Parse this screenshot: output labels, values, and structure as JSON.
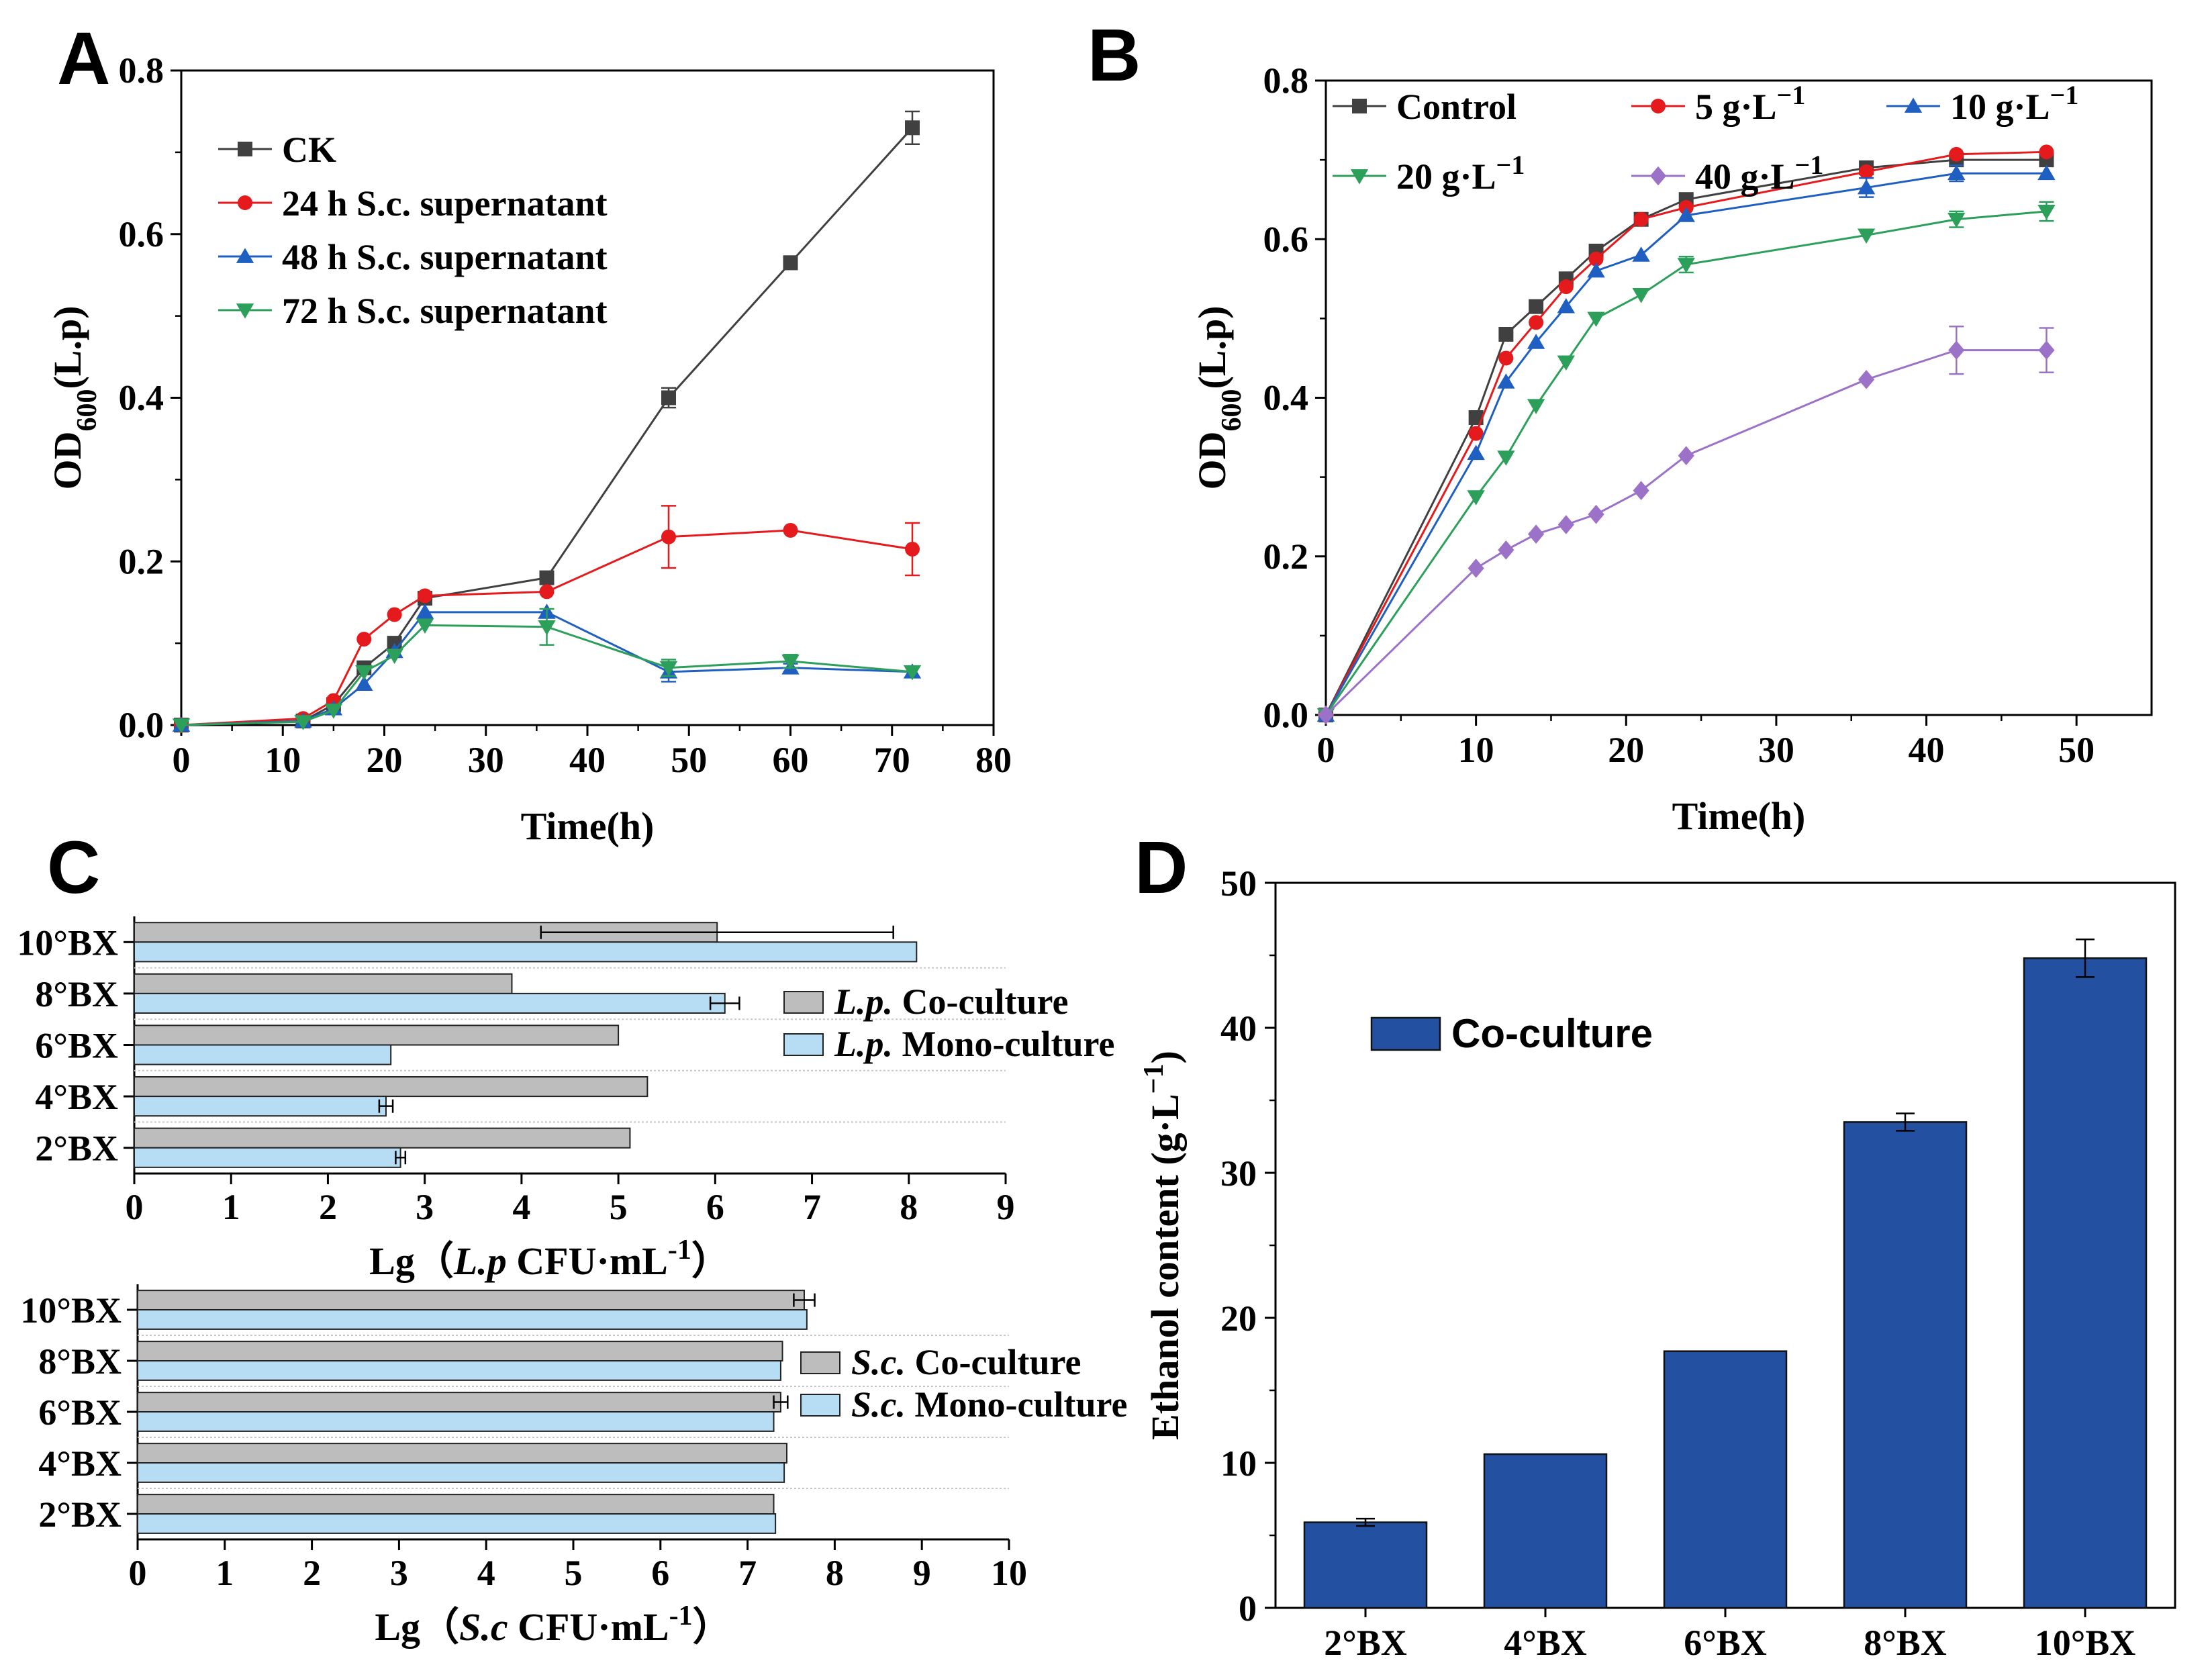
{
  "chart_data": [
    {
      "panel": "A",
      "type": "line",
      "xlabel": "Time(h)",
      "ylabel": "OD600(L.p)",
      "ylabel_main": "OD",
      "ylabel_sub": "600",
      "ylabel_tail": "(L.p)",
      "xlim": [
        0,
        80
      ],
      "ylim": [
        0,
        0.8
      ],
      "xticks": [
        0,
        10,
        20,
        30,
        40,
        50,
        60,
        70,
        80
      ],
      "yticks": [
        "0.0",
        "0.2",
        "0.4",
        "0.6",
        "0.8"
      ],
      "legend_position": "top-left",
      "series": [
        {
          "name": "CK",
          "color": "#404040",
          "marker": "square",
          "x": [
            0,
            12,
            15,
            18,
            21,
            24,
            36,
            48,
            60,
            72
          ],
          "y": [
            0.0,
            0.005,
            0.025,
            0.07,
            0.1,
            0.155,
            0.18,
            0.4,
            0.565,
            0.73
          ],
          "err": [
            0,
            0,
            0,
            0,
            0,
            0,
            0,
            0.012,
            0.008,
            0.02
          ]
        },
        {
          "name": "24 h S.c. supernatant",
          "color": "#e41a1c",
          "marker": "circle",
          "x": [
            0,
            12,
            15,
            18,
            21,
            24,
            36,
            48,
            60,
            72
          ],
          "y": [
            0.0,
            0.008,
            0.03,
            0.105,
            0.135,
            0.158,
            0.163,
            0.23,
            0.238,
            0.215
          ],
          "err": [
            0,
            0,
            0,
            0,
            0,
            0,
            0,
            0.038,
            0,
            0.032
          ]
        },
        {
          "name": "48 h S.c. supernatant",
          "color": "#1f5fc1",
          "marker": "triangle",
          "x": [
            0,
            12,
            15,
            18,
            21,
            24,
            36,
            48,
            60,
            72
          ],
          "y": [
            0.0,
            0.005,
            0.02,
            0.05,
            0.09,
            0.138,
            0.138,
            0.065,
            0.07,
            0.065
          ],
          "err": [
            0,
            0,
            0,
            0,
            0,
            0,
            0,
            0.012,
            0.005,
            0
          ]
        },
        {
          "name": "72 h S.c. supernatant",
          "color": "#2ca05a",
          "marker": "triangle-down",
          "x": [
            0,
            12,
            15,
            18,
            21,
            24,
            36,
            48,
            60,
            72
          ],
          "y": [
            0.0,
            0.004,
            0.018,
            0.065,
            0.085,
            0.122,
            0.12,
            0.07,
            0.078,
            0.065
          ],
          "err": [
            0,
            0,
            0,
            0,
            0,
            0,
            0.022,
            0.01,
            0.008,
            0
          ]
        }
      ]
    },
    {
      "panel": "B",
      "type": "line",
      "xlabel": "Time(h)",
      "ylabel": "OD600(L.p)",
      "ylabel_main": "OD",
      "ylabel_sub": "600",
      "ylabel_tail": "(L.p)",
      "xlim": [
        0,
        55
      ],
      "ylim": [
        0,
        0.8
      ],
      "xticks": [
        0,
        10,
        20,
        30,
        40,
        50
      ],
      "yticks": [
        "0.0",
        "0.2",
        "0.4",
        "0.6",
        "0.8"
      ],
      "legend_position": "top",
      "series": [
        {
          "name": "Control",
          "name_main": "Control",
          "name_unit": "",
          "color": "#404040",
          "marker": "square",
          "x": [
            0,
            10,
            12,
            14,
            16,
            18,
            21,
            24,
            36,
            42,
            48
          ],
          "y": [
            0.0,
            0.375,
            0.48,
            0.515,
            0.55,
            0.585,
            0.625,
            0.65,
            0.69,
            0.7,
            0.7
          ],
          "err": [
            0,
            0,
            0,
            0,
            0,
            0,
            0,
            0,
            0,
            0,
            0
          ]
        },
        {
          "name": "5 g·L−1",
          "name_main": "5 g·L",
          "name_unit": "−1",
          "color": "#e41a1c",
          "marker": "circle",
          "x": [
            0,
            10,
            12,
            14,
            16,
            18,
            21,
            24,
            36,
            42,
            48
          ],
          "y": [
            0.0,
            0.355,
            0.45,
            0.495,
            0.54,
            0.575,
            0.625,
            0.64,
            0.685,
            0.707,
            0.71
          ],
          "err": [
            0,
            0,
            0,
            0,
            0,
            0,
            0,
            0,
            0,
            0,
            0
          ]
        },
        {
          "name": "10 g·L−1",
          "name_main": "10 g·L",
          "name_unit": "−1",
          "color": "#1f5fc1",
          "marker": "triangle",
          "x": [
            0,
            10,
            12,
            14,
            16,
            18,
            21,
            24,
            36,
            42,
            48
          ],
          "y": [
            0.0,
            0.33,
            0.42,
            0.47,
            0.515,
            0.56,
            0.58,
            0.63,
            0.665,
            0.683,
            0.683
          ],
          "err": [
            0,
            0,
            0,
            0,
            0,
            0,
            0,
            0,
            0.012,
            0.01,
            0
          ]
        },
        {
          "name": "20 g·L−1",
          "name_main": "20 g·L",
          "name_unit": "−1",
          "color": "#2ca05a",
          "marker": "triangle-down",
          "x": [
            0,
            10,
            12,
            14,
            16,
            18,
            21,
            24,
            36,
            42,
            48
          ],
          "y": [
            0.0,
            0.275,
            0.325,
            0.39,
            0.445,
            0.5,
            0.53,
            0.568,
            0.605,
            0.625,
            0.635
          ],
          "err": [
            0,
            0,
            0,
            0,
            0,
            0,
            0,
            0.01,
            0,
            0.01,
            0.012
          ]
        },
        {
          "name": "40 g·L−1",
          "name_main": "40 g·L",
          "name_unit": "−1",
          "color": "#9b72c8",
          "marker": "diamond",
          "x": [
            0,
            10,
            12,
            14,
            16,
            18,
            21,
            24,
            36,
            42,
            48
          ],
          "y": [
            0.0,
            0.185,
            0.208,
            0.228,
            0.24,
            0.253,
            0.283,
            0.327,
            0.423,
            0.46,
            0.46
          ],
          "err": [
            0,
            0,
            0,
            0,
            0,
            0,
            0,
            0,
            0,
            0.03,
            0.028
          ]
        }
      ]
    },
    {
      "panel": "C1",
      "type": "bar",
      "orientation": "horizontal",
      "xlabel": "Lg（L.p CFU·mL-1）",
      "xlabel_pre": "Lg（",
      "xlabel_ital": "L.p",
      "xlabel_mid": " CFU·mL",
      "xlabel_sup": "-1",
      "xlabel_post": "）",
      "xlim": [
        0,
        9
      ],
      "xticks": [
        0,
        1,
        2,
        3,
        4,
        5,
        6,
        7,
        8,
        9
      ],
      "categories": [
        "10°BX",
        "8°BX",
        "6°BX",
        "4°BX",
        "2°BX"
      ],
      "legend_position": "right",
      "series": [
        {
          "name": "L.p. Co-culture",
          "name_ital": "L.p.",
          "name_rest": " Co-culture",
          "color": "#bdbdbd",
          "values": [
            6.02,
            3.9,
            5.0,
            5.3,
            5.12
          ],
          "err": [
            1.82,
            0,
            0,
            0,
            0
          ]
        },
        {
          "name": "L.p. Mono-culture",
          "name_ital": "L.p.",
          "name_rest": " Mono-culture",
          "color": "#b7ddf5",
          "values": [
            8.08,
            6.1,
            2.65,
            2.6,
            2.75
          ],
          "err": [
            0,
            0.15,
            0,
            0.07,
            0.05
          ]
        }
      ]
    },
    {
      "panel": "C2",
      "type": "bar",
      "orientation": "horizontal",
      "xlabel": "Lg（S.c CFU·mL-1）",
      "xlabel_pre": "Lg（",
      "xlabel_ital": "S.c",
      "xlabel_mid": " CFU·mL",
      "xlabel_sup": "-1",
      "xlabel_post": "）",
      "xlim": [
        0,
        10
      ],
      "xticks": [
        0,
        1,
        2,
        3,
        4,
        5,
        6,
        7,
        8,
        9,
        10
      ],
      "categories": [
        "10°BX",
        "8°BX",
        "6°BX",
        "4°BX",
        "2°BX"
      ],
      "legend_position": "right",
      "series": [
        {
          "name": "S.c. Co-culture",
          "name_ital": "S.c.",
          "name_rest": " Co-culture",
          "color": "#bdbdbd",
          "values": [
            7.65,
            7.4,
            7.38,
            7.45,
            7.3
          ],
          "err": [
            0.12,
            0,
            0.08,
            0,
            0
          ]
        },
        {
          "name": "S.c. Mono-culture",
          "name_ital": "S.c.",
          "name_rest": " Mono-culture",
          "color": "#b7ddf5",
          "values": [
            7.68,
            7.38,
            7.3,
            7.42,
            7.32
          ],
          "err": [
            0,
            0,
            0,
            0,
            0
          ]
        }
      ]
    },
    {
      "panel": "D",
      "type": "bar",
      "orientation": "vertical",
      "ylabel": "Ethanol content (g·L−1)",
      "ylabel_main": "Ethanol content (g·L",
      "ylabel_sup": "−1",
      "ylabel_tail": ")",
      "ylim": [
        0,
        50
      ],
      "yticks": [
        0,
        10,
        20,
        30,
        40,
        50
      ],
      "categories": [
        "2°BX",
        "4°BX",
        "6°BX",
        "8°BX",
        "10°BX"
      ],
      "legend_position": "top-left",
      "series": [
        {
          "name": "Co-culture",
          "color": "#2350a0",
          "values": [
            5.9,
            10.6,
            17.7,
            33.5,
            44.8
          ],
          "err": [
            0.25,
            0,
            0,
            0.6,
            1.3
          ]
        }
      ]
    }
  ],
  "panel_letters": [
    "A",
    "B",
    "C",
    "D"
  ]
}
